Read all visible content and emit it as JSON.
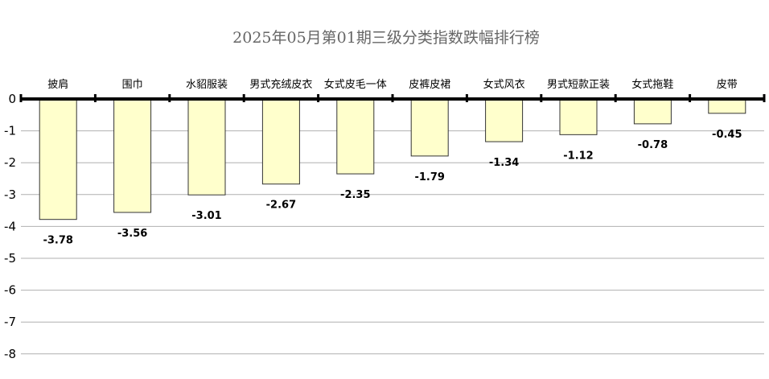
{
  "chart_data": {
    "type": "bar",
    "title": "2025年05月第01期三级分类指数跌幅排行榜",
    "categories": [
      "披肩",
      "围巾",
      "水貂服装",
      "男式充绒皮衣",
      "女式皮毛一体",
      "皮裤皮裙",
      "女式风衣",
      "男式短款正装",
      "女式拖鞋",
      "皮带"
    ],
    "values": [
      -3.78,
      -3.56,
      -3.01,
      -2.67,
      -2.35,
      -1.79,
      -1.34,
      -1.12,
      -0.78,
      -0.45
    ],
    "value_labels": [
      "-3.78",
      "-3.56",
      "-3.01",
      "-2.67",
      "-2.35",
      "-1.79",
      "-1.34",
      "-1.12",
      "-0.78",
      "-0.45"
    ],
    "ylim": [
      -8,
      0
    ],
    "yticks": [
      0,
      -1,
      -2,
      -3,
      -4,
      -5,
      -6,
      -7,
      -8
    ],
    "ytick_labels": [
      "0",
      "-1",
      "-2",
      "-3",
      "-4",
      "-5",
      "-6",
      "-7",
      "-8"
    ],
    "xaxis_position": "top",
    "grid": true,
    "legend": "none",
    "bar_color": "#ffffcc",
    "bar_border": "#333333",
    "axis_color": "#000000",
    "grid_color": "#b0b0b0",
    "title_color": "#666666"
  }
}
